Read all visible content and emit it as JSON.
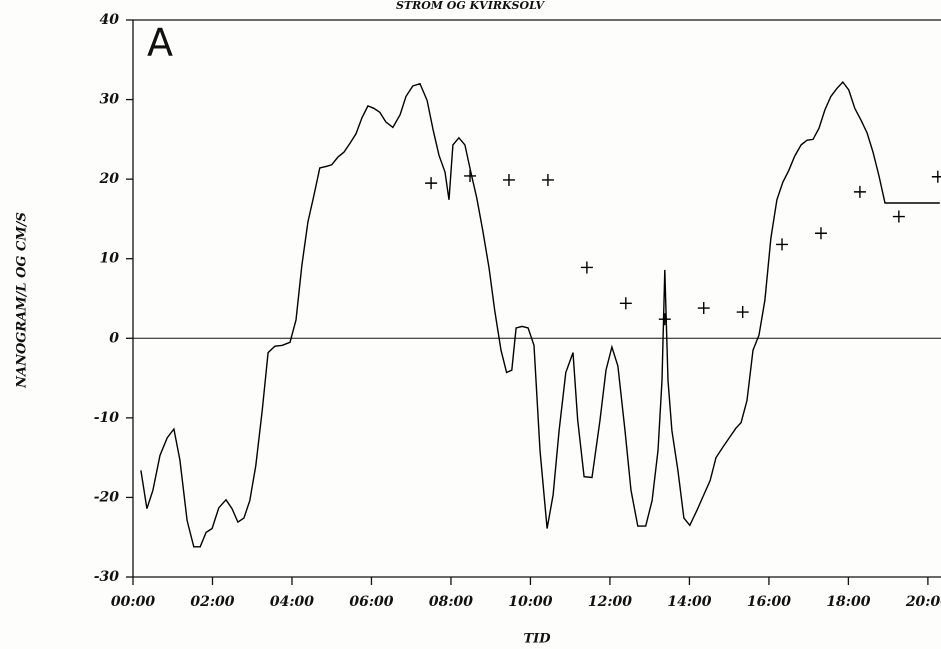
{
  "chart_data": {
    "type": "line",
    "title": "STROM OG KVIRKSOLV",
    "xlabel": "TID",
    "ylabel": "NANOGRAM/L OG CM/S",
    "annotation": "A",
    "xlim": [
      0,
      20.33
    ],
    "ylim": [
      -30,
      40
    ],
    "yticks": [
      -30,
      -20,
      -10,
      0,
      10,
      20,
      30,
      40
    ],
    "xticks": [
      {
        "value": 0,
        "label": "00:00"
      },
      {
        "value": 2,
        "label": "02:00"
      },
      {
        "value": 4,
        "label": "04:00"
      },
      {
        "value": 6,
        "label": "06:00"
      },
      {
        "value": 8,
        "label": "08:00"
      },
      {
        "value": 10,
        "label": "10:00"
      },
      {
        "value": 12,
        "label": "12:00"
      },
      {
        "value": 14,
        "label": "14:00"
      },
      {
        "value": 16,
        "label": "16:00"
      },
      {
        "value": 18,
        "label": "18:00"
      },
      {
        "value": 20,
        "label": "20:00"
      }
    ],
    "zero_line": true,
    "series": [
      {
        "mode": "line",
        "color": "#000000",
        "x": [
          0.2,
          0.35,
          0.5,
          0.68,
          0.86,
          1.03,
          1.18,
          1.36,
          1.53,
          1.69,
          1.84,
          1.99,
          2.16,
          2.34,
          2.49,
          2.64,
          2.79,
          2.94,
          3.09,
          3.25,
          3.4,
          3.57,
          3.75,
          3.95,
          4.1,
          4.25,
          4.4,
          4.55,
          4.7,
          4.86,
          5.0,
          5.16,
          5.31,
          5.46,
          5.61,
          5.76,
          5.91,
          6.06,
          6.21,
          6.36,
          6.54,
          6.72,
          6.87,
          7.04,
          7.22,
          7.4,
          7.55,
          7.7,
          7.85,
          7.95,
          8.05,
          8.2,
          8.35,
          8.5,
          8.65,
          8.8,
          8.96,
          9.1,
          9.26,
          9.4,
          9.53,
          9.64,
          9.79,
          9.94,
          10.09,
          10.24,
          10.42,
          10.57,
          10.72,
          10.89,
          11.07,
          11.19,
          11.35,
          11.55,
          11.75,
          11.9,
          12.05,
          12.2,
          12.38,
          12.53,
          12.7,
          12.9,
          13.06,
          13.21,
          13.31,
          13.38,
          13.46,
          13.56,
          13.71,
          13.86,
          14.01,
          14.19,
          14.36,
          14.52,
          14.67,
          14.84,
          14.99,
          15.17,
          15.3,
          15.45,
          15.6,
          15.75,
          15.9,
          16.05,
          16.2,
          16.35,
          16.5,
          16.65,
          16.81,
          16.96,
          17.11,
          17.26,
          17.41,
          17.56,
          17.71,
          17.86,
          18.01,
          18.16,
          18.32,
          18.47,
          18.62,
          18.77,
          18.92,
          20.3
        ],
        "values": [
          -16.6,
          -21.4,
          -19.1,
          -14.7,
          -12.5,
          -11.4,
          -15.3,
          -22.9,
          -26.2,
          -26.2,
          -24.4,
          -23.9,
          -21.3,
          -20.3,
          -21.4,
          -23.1,
          -22.6,
          -20.4,
          -16,
          -9.1,
          -1.8,
          -1,
          -0.9,
          -0.5,
          2.3,
          9.2,
          14.6,
          17.9,
          21.4,
          21.6,
          21.8,
          22.8,
          23.4,
          24.5,
          25.7,
          27.7,
          29.2,
          28.9,
          28.4,
          27.2,
          26.5,
          28.1,
          30.4,
          31.7,
          32,
          29.9,
          26.2,
          23,
          20.9,
          17.4,
          24.3,
          25.2,
          24.3,
          20.9,
          17.6,
          13.6,
          8.8,
          3.5,
          -1.5,
          -4.3,
          -4,
          1.3,
          1.5,
          1.3,
          -0.9,
          -14.1,
          -23.9,
          -19.7,
          -11.6,
          -4.3,
          -1.8,
          -10.3,
          -17.4,
          -17.5,
          -10.3,
          -4,
          -1.1,
          -3.5,
          -11.6,
          -19.1,
          -23.6,
          -23.6,
          -20.4,
          -14.1,
          -5.3,
          8.6,
          -5.3,
          -11.6,
          -16.6,
          -22.6,
          -23.5,
          -21.6,
          -19.7,
          -17.9,
          -15,
          -13.7,
          -12.6,
          -11.3,
          -10.6,
          -7.8,
          -1.5,
          0.4,
          4.8,
          12.6,
          17.4,
          19.6,
          21.1,
          22.9,
          24.3,
          24.9,
          25,
          26.4,
          28.7,
          30.4,
          31.4,
          32.2,
          31.2,
          28.9,
          27.4,
          25.8,
          23.4,
          20.4,
          17,
          17
        ]
      },
      {
        "mode": "points",
        "color": "#000000",
        "x": [
          7.5,
          8.48,
          9.46,
          10.44,
          11.42,
          12.4,
          13.38,
          14.36,
          15.34,
          16.33,
          17.31,
          18.29,
          19.27,
          20.25
        ],
        "values": [
          19.5,
          20.4,
          19.9,
          19.9,
          8.9,
          4.4,
          2.4,
          3.8,
          3.3,
          11.8,
          13.2,
          18.4,
          15.3,
          20.3
        ]
      }
    ]
  }
}
